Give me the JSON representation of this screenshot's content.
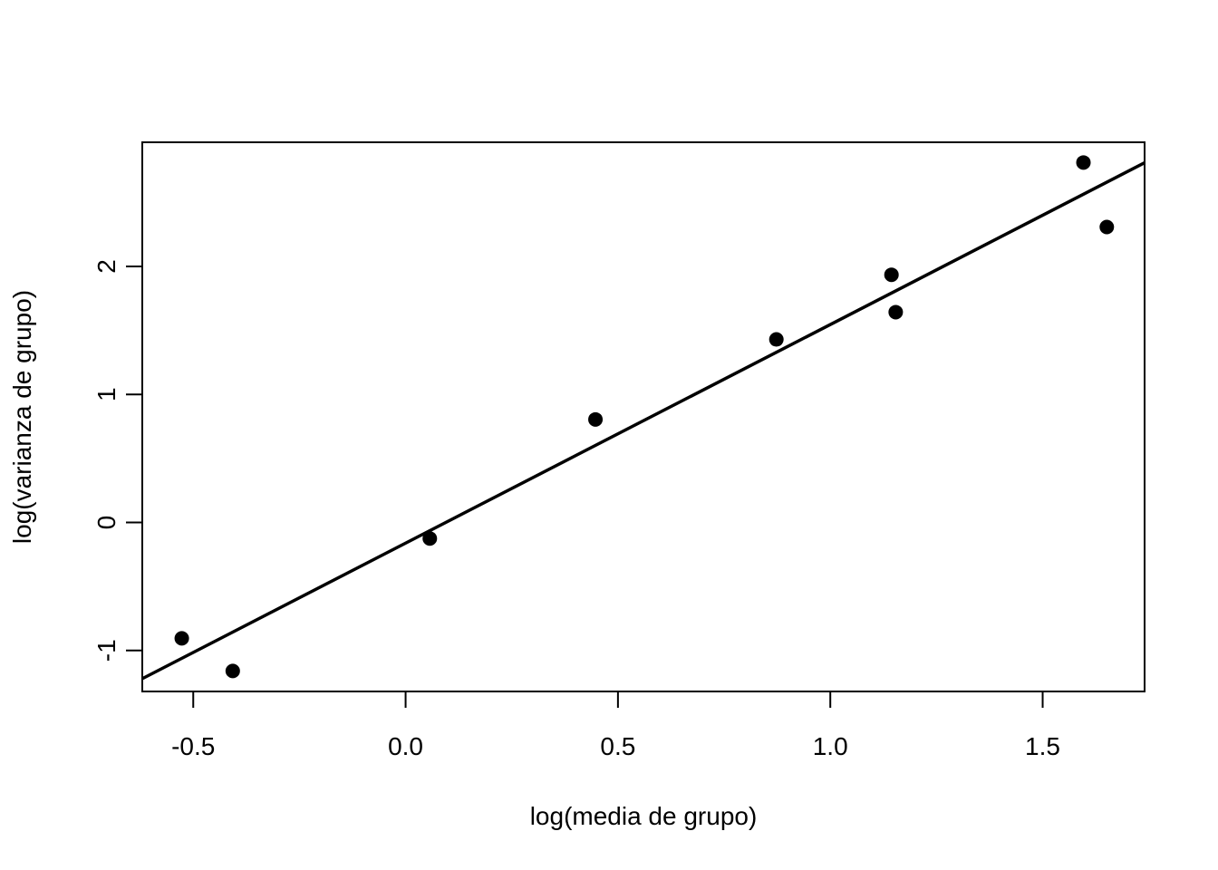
{
  "chart_data": {
    "type": "scatter",
    "title": "",
    "xlabel": "log(media de grupo)",
    "ylabel": "log(varianza de grupo)",
    "xlim": [
      -0.62,
      1.74
    ],
    "ylim": [
      -1.32,
      2.97
    ],
    "x_ticks": [
      -0.5,
      0.0,
      0.5,
      1.0,
      1.5
    ],
    "x_tick_labels": [
      "-0.5",
      "0.0",
      "0.5",
      "1.0",
      "1.5"
    ],
    "y_ticks": [
      -1,
      0,
      1,
      2
    ],
    "y_tick_labels": [
      "-1",
      "0",
      "1",
      "2"
    ],
    "grid": false,
    "points": [
      {
        "x": -0.527,
        "y": -0.905
      },
      {
        "x": -0.407,
        "y": -1.16
      },
      {
        "x": 0.057,
        "y": -0.125
      },
      {
        "x": 0.447,
        "y": 0.805
      },
      {
        "x": 0.873,
        "y": 1.43
      },
      {
        "x": 1.144,
        "y": 1.935
      },
      {
        "x": 1.154,
        "y": 1.643
      },
      {
        "x": 1.596,
        "y": 2.812
      },
      {
        "x": 1.651,
        "y": 2.308
      }
    ],
    "fit_line": {
      "x": [
        -0.62,
        1.74
      ],
      "y": [
        -1.22,
        2.81
      ]
    }
  }
}
